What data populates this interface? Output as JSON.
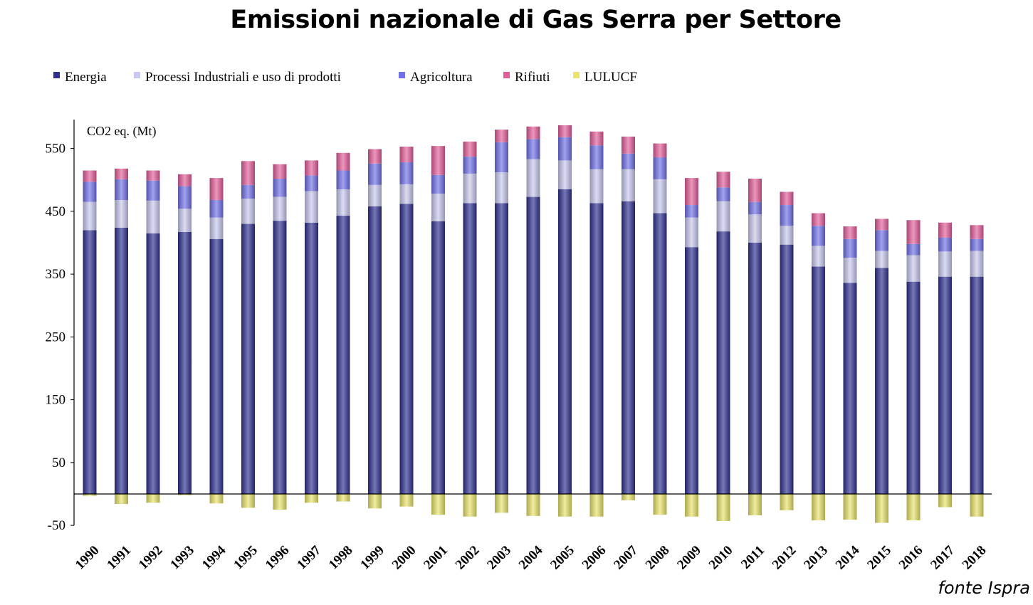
{
  "chart_data": {
    "type": "bar",
    "stacked": true,
    "title": "Emissioni nazionale di Gas Serra per Settore",
    "unit_label": "CO2 eq. (Mt)",
    "source": "fonte Ispra",
    "categories": [
      "1990",
      "1991",
      "1992",
      "1993",
      "1994",
      "1995",
      "1996",
      "1997",
      "1998",
      "1999",
      "2000",
      "2001",
      "2002",
      "2003",
      "2004",
      "2005",
      "2006",
      "2007",
      "2008",
      "2009",
      "2010",
      "2011",
      "2012",
      "2013",
      "2014",
      "2015",
      "2016",
      "2017",
      "2018"
    ],
    "ylim": [
      -50,
      600
    ],
    "yticks": [
      -50,
      50,
      150,
      250,
      350,
      450,
      550
    ],
    "legend_position": "top-left",
    "grid": false,
    "totals": [
      515,
      518,
      515,
      509,
      503,
      530,
      525,
      531,
      543,
      549,
      553,
      554,
      561,
      580,
      585,
      587,
      577,
      569,
      558,
      503,
      513,
      502,
      481,
      447,
      426,
      438,
      436,
      432,
      428
    ],
    "series": [
      {
        "name": "Energia",
        "color": "#2e2f8f",
        "values": [
          420,
          424,
          415,
          417,
          406,
          430,
          435,
          432,
          443,
          458,
          462,
          434,
          463,
          463,
          473,
          485,
          463,
          466,
          447,
          393,
          418,
          400,
          397,
          362,
          336,
          360,
          338,
          346,
          346
        ]
      },
      {
        "name": "Processi Industriali e uso di prodotti",
        "color": "#c8c8ee",
        "values": [
          45,
          44,
          52,
          37,
          34,
          40,
          38,
          50,
          42,
          34,
          31,
          44,
          47,
          49,
          60,
          46,
          54,
          51,
          54,
          47,
          48,
          45,
          30,
          33,
          40,
          27,
          42,
          40,
          41
        ]
      },
      {
        "name": "Agricoltura",
        "color": "#7070e8",
        "values": [
          32,
          33,
          32,
          36,
          28,
          22,
          29,
          25,
          30,
          34,
          35,
          30,
          27,
          48,
          32,
          37,
          38,
          25,
          35,
          20,
          22,
          20,
          33,
          32,
          30,
          33,
          18,
          22,
          19
        ]
      },
      {
        "name": "Rifiuti",
        "color": "#e35d9a",
        "values": [
          18,
          17,
          16,
          19,
          35,
          38,
          23,
          24,
          28,
          23,
          25,
          46,
          24,
          20,
          20,
          19,
          22,
          27,
          22,
          43,
          25,
          37,
          21,
          20,
          20,
          18,
          38,
          24,
          22
        ]
      },
      {
        "name": "LULUCF",
        "color": "#e8e36a",
        "values": [
          -3,
          -16,
          -14,
          -2,
          -15,
          -22,
          -25,
          -14,
          -12,
          -23,
          -20,
          -33,
          -36,
          -30,
          -35,
          -36,
          -36,
          -10,
          -33,
          -36,
          -43,
          -34,
          -26,
          -42,
          -41,
          -46,
          -42,
          -21,
          -36
        ]
      }
    ]
  }
}
